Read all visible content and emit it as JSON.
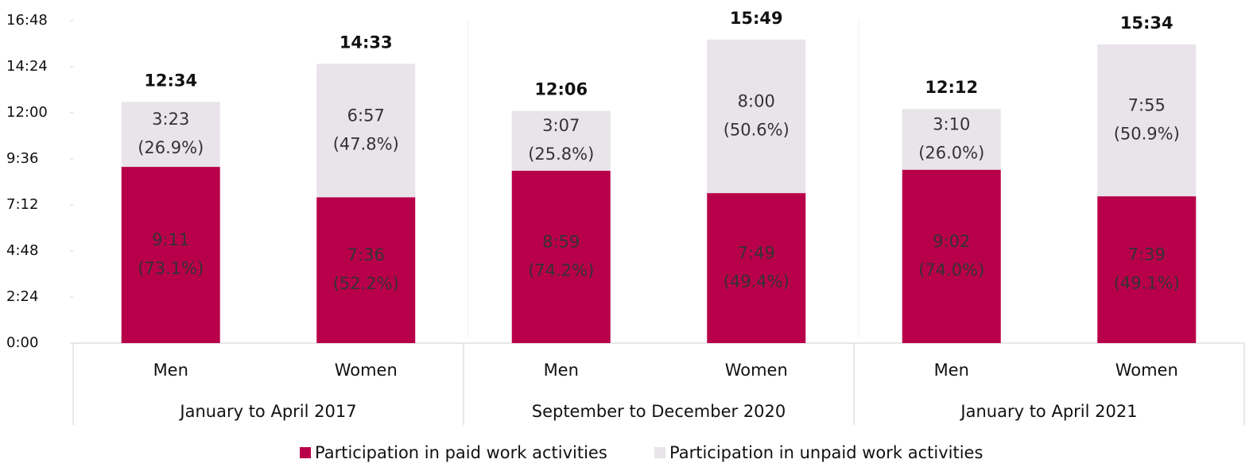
{
  "chart_data": {
    "type": "stacked_bar",
    "categories": [
      "Men",
      "Women",
      "Men",
      "Women",
      "Men",
      "Women"
    ],
    "groups": [
      "January to April 2017",
      "September to December 2020",
      "January to April 2021"
    ],
    "series": [
      {
        "name": "Participation in paid work activities",
        "color": "#b8004a",
        "values": [
          551,
          456,
          539,
          469,
          542,
          459
        ],
        "value_labels": [
          [
            "9:11",
            "(73.1%)"
          ],
          [
            "7:36",
            "(52.2%)"
          ],
          [
            "8:59",
            "(74.2%)"
          ],
          [
            "7:49",
            "(49.4%)"
          ],
          [
            "9:02",
            "(74.0%)"
          ],
          [
            "7:39",
            "(49.1%)"
          ]
        ]
      },
      {
        "name": "Participation in unpaid work activities",
        "color": "#e8e4ea",
        "values": [
          203,
          417,
          187,
          480,
          190,
          475
        ],
        "value_labels": [
          [
            "3:23",
            "(26.9%)"
          ],
          [
            "6:57",
            "(47.8%)"
          ],
          [
            "3:07",
            "(25.8%)"
          ],
          [
            "8:00",
            "(50.6%)"
          ],
          [
            "3:10",
            "(26.0%)"
          ],
          [
            "7:55",
            "(50.9%)"
          ]
        ]
      }
    ],
    "totals": [
      {
        "value": 754,
        "label": "12:34"
      },
      {
        "value": 873,
        "label": "14:33"
      },
      {
        "value": 726,
        "label": "12:06"
      },
      {
        "value": 949,
        "label": "15:49"
      },
      {
        "value": 732,
        "label": "12:12"
      },
      {
        "value": 934,
        "label": "15:34"
      }
    ],
    "ylim": [
      0,
      1008
    ],
    "yticks": [
      {
        "value": 0,
        "label": "0:00"
      },
      {
        "value": 144,
        "label": "2:24"
      },
      {
        "value": 288,
        "label": "4:48"
      },
      {
        "value": 432,
        "label": "7:12"
      },
      {
        "value": 576,
        "label": "9:36"
      },
      {
        "value": 720,
        "label": "12:00"
      },
      {
        "value": 864,
        "label": "14:24"
      },
      {
        "value": 1008,
        "label": "16:48"
      }
    ],
    "legend": "bottom"
  }
}
